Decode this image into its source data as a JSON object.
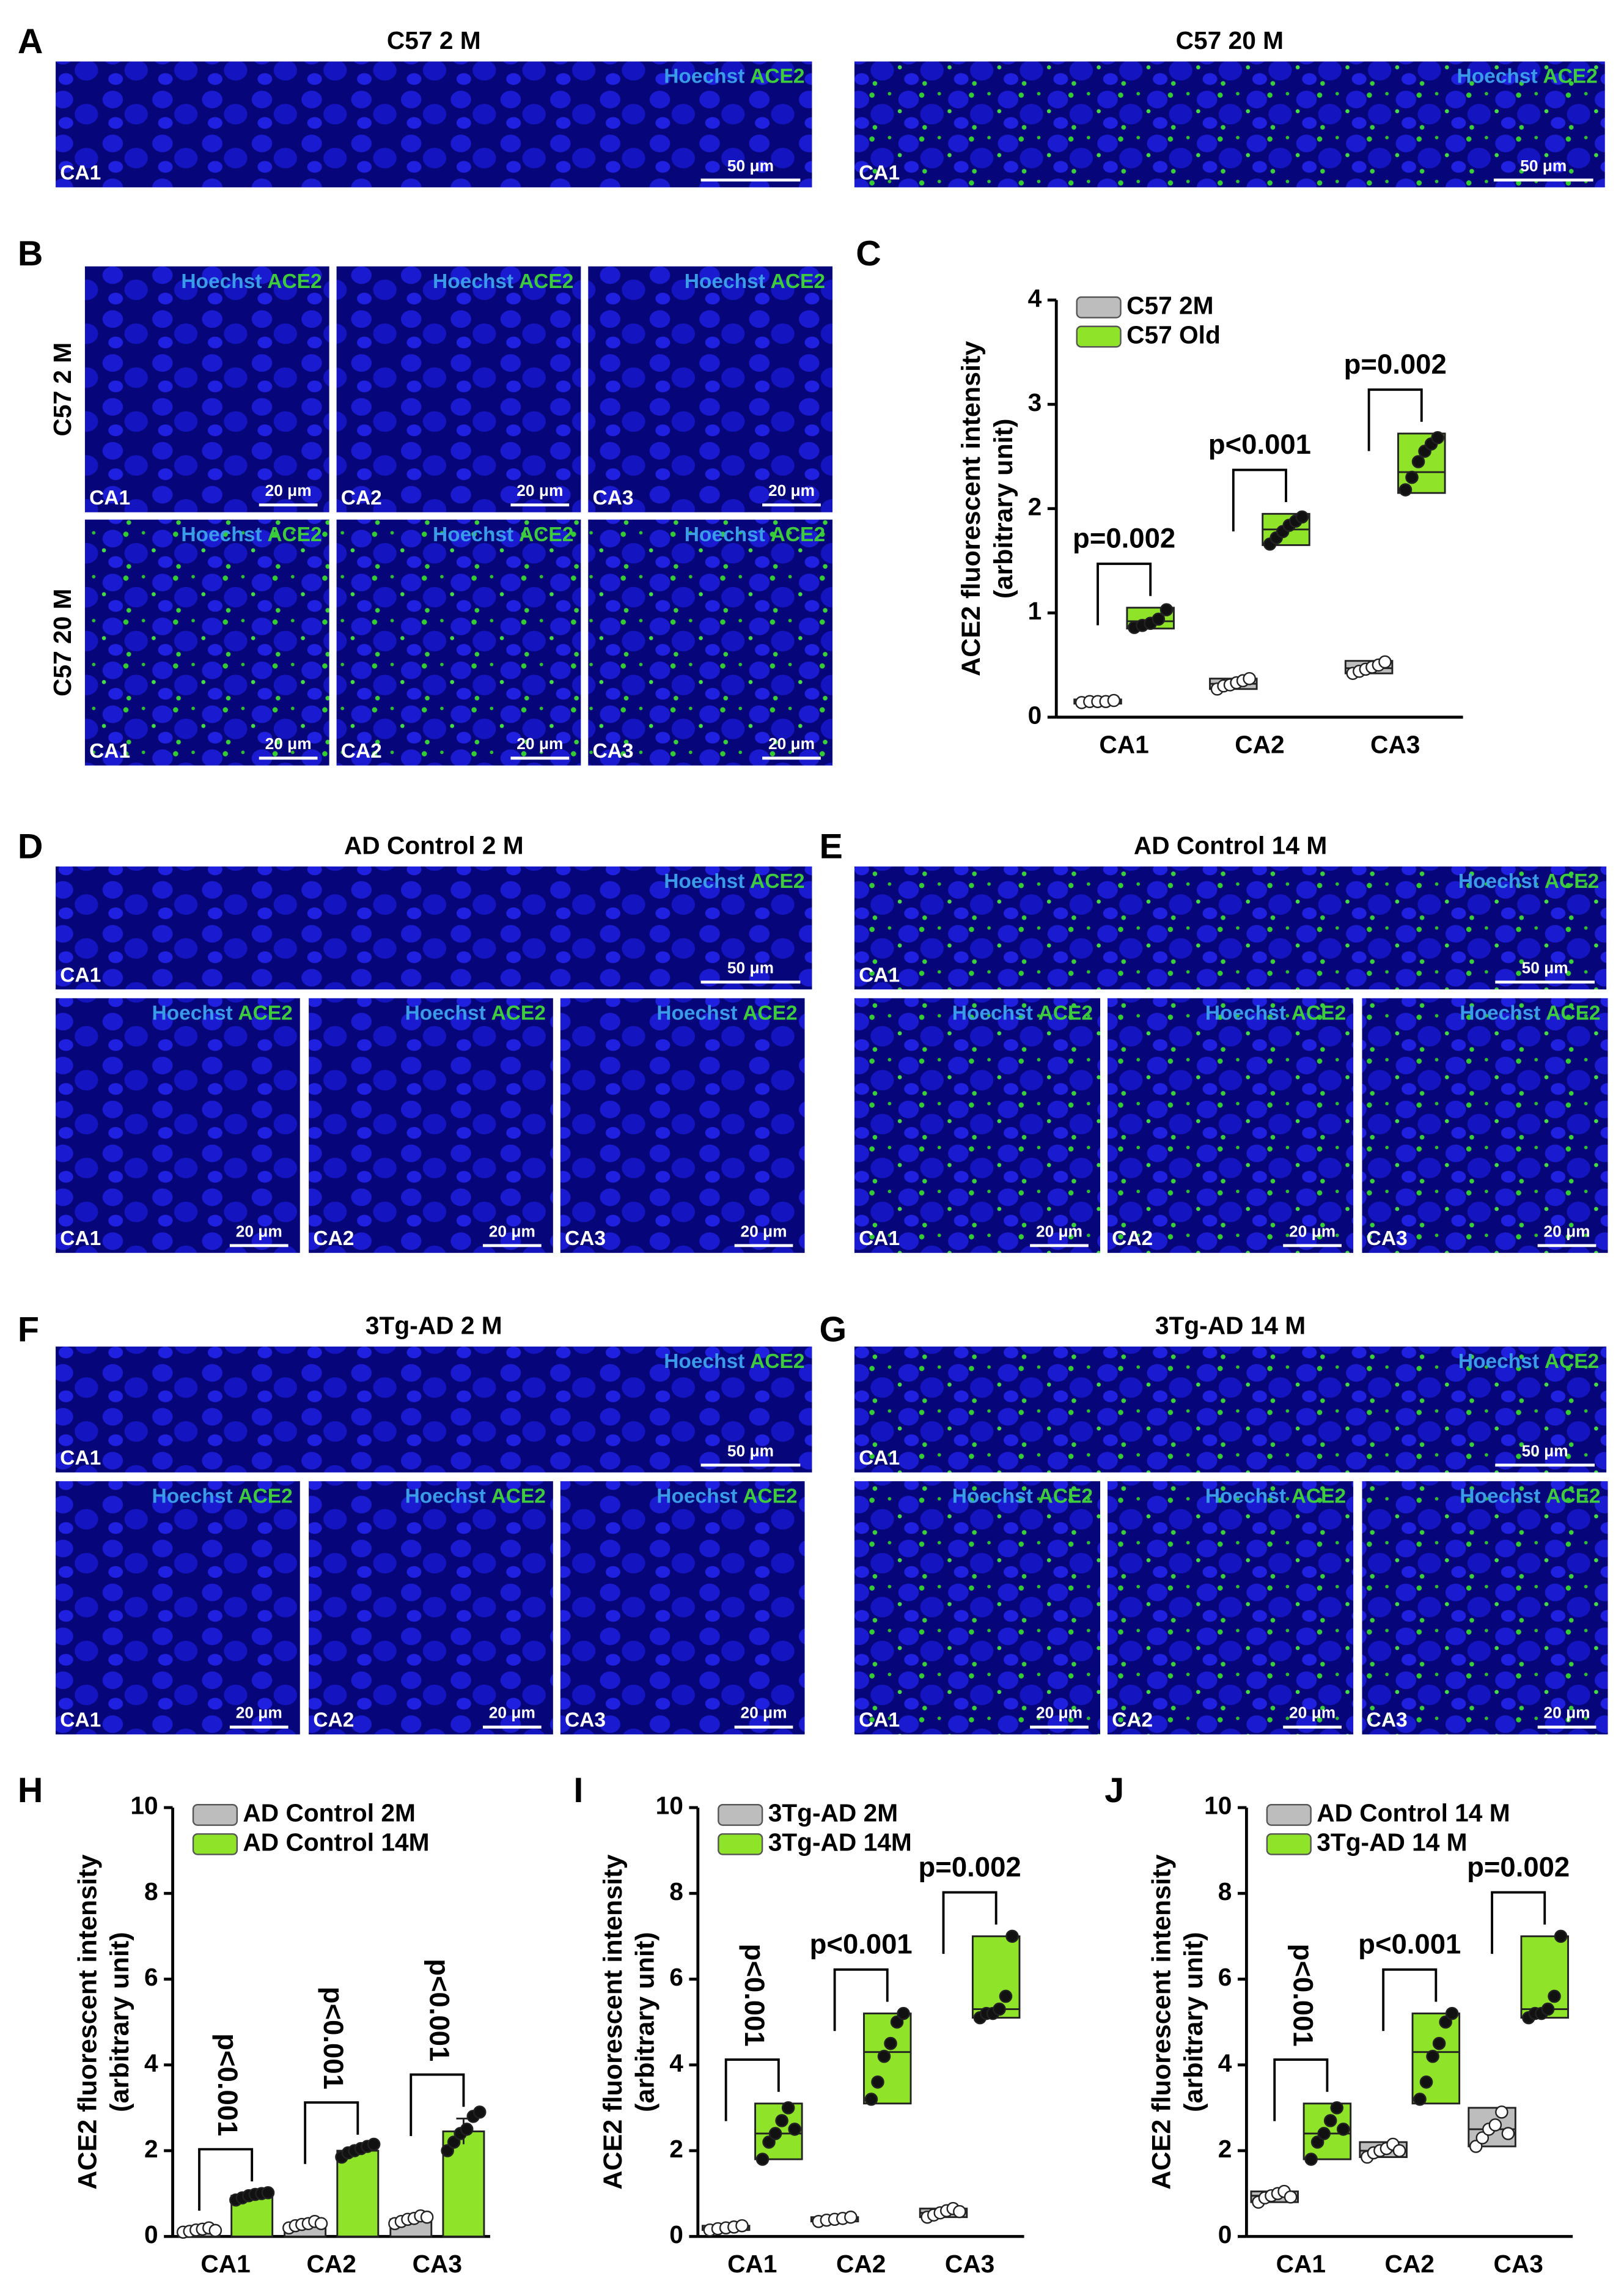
{
  "figure": {
    "letters": [
      "A",
      "B",
      "C",
      "D",
      "E",
      "F",
      "G",
      "H",
      "I",
      "J"
    ],
    "image_groups": [
      {
        "title": "C57 2 M",
        "images": [
          {
            "stain": [
              "Hoechst",
              "ACE2"
            ],
            "region": "CA1",
            "scale": "50 μm"
          }
        ]
      },
      {
        "title": "C57 20 M",
        "images": [
          {
            "stain": [
              "Hoechst",
              "ACE2"
            ],
            "region": "CA1",
            "scale": "50 μm"
          }
        ]
      },
      {
        "row_labels": [
          "C57 2 M",
          "C57 20 M"
        ],
        "images": [
          {
            "stain": [
              "Hoechst",
              "ACE2"
            ],
            "region": "CA1",
            "scale": "20 μm"
          },
          {
            "stain": [
              "Hoechst",
              "ACE2"
            ],
            "region": "CA2",
            "scale": "20 μm"
          },
          {
            "stain": [
              "Hoechst",
              "ACE2"
            ],
            "region": "CA3",
            "scale": "20 μm"
          },
          {
            "stain": [
              "Hoechst",
              "ACE2"
            ],
            "region": "CA1",
            "scale": "20 μm"
          },
          {
            "stain": [
              "Hoechst",
              "ACE2"
            ],
            "region": "CA2",
            "scale": "20 μm"
          },
          {
            "stain": [
              "Hoechst",
              "ACE2"
            ],
            "region": "CA3",
            "scale": "20 μm"
          }
        ]
      },
      {
        "title": "AD Control 2 M",
        "images": [
          {
            "stain": [
              "Hoechst",
              "ACE2"
            ],
            "region": "CA1",
            "scale": "50 μm"
          },
          {
            "stain": [
              "Hoechst",
              "ACE2"
            ],
            "region": "CA1",
            "scale": "20 μm"
          },
          {
            "stain": [
              "Hoechst",
              "ACE2"
            ],
            "region": "CA2",
            "scale": "20 μm"
          },
          {
            "stain": [
              "Hoechst",
              "ACE2"
            ],
            "region": "CA3",
            "scale": "20 μm"
          }
        ]
      },
      {
        "title": "AD Control 14 M",
        "images": [
          {
            "stain": [
              "Hoechst",
              "ACE2"
            ],
            "region": "CA1",
            "scale": "50 μm"
          },
          {
            "stain": [
              "Hoechst",
              "ACE2"
            ],
            "region": "CA1",
            "scale": "20 μm"
          },
          {
            "stain": [
              "Hoechst",
              "ACE2"
            ],
            "region": "CA2",
            "scale": "20 μm"
          },
          {
            "stain": [
              "Hoechst",
              "ACE2"
            ],
            "region": "CA3",
            "scale": "20 μm"
          }
        ]
      },
      {
        "title": "3Tg-AD 2 M",
        "images": [
          {
            "stain": [
              "Hoechst",
              "ACE2"
            ],
            "region": "CA1",
            "scale": "50 μm"
          },
          {
            "stain": [
              "Hoechst",
              "ACE2"
            ],
            "region": "CA1",
            "scale": "20 μm"
          },
          {
            "stain": [
              "Hoechst",
              "ACE2"
            ],
            "region": "CA2",
            "scale": "20 μm"
          },
          {
            "stain": [
              "Hoechst",
              "ACE2"
            ],
            "region": "CA3",
            "scale": "20 μm"
          }
        ]
      },
      {
        "title": "3Tg-AD 14 M",
        "images": [
          {
            "stain": [
              "Hoechst",
              "ACE2"
            ],
            "region": "CA1",
            "scale": "50 μm"
          },
          {
            "stain": [
              "Hoechst",
              "ACE2"
            ],
            "region": "CA1",
            "scale": "20 μm"
          },
          {
            "stain": [
              "Hoechst",
              "ACE2"
            ],
            "region": "CA2",
            "scale": "20 μm"
          },
          {
            "stain": [
              "Hoechst",
              "ACE2"
            ],
            "region": "CA3",
            "scale": "20 μm"
          }
        ]
      }
    ]
  },
  "chart_data": [
    {
      "type": "box",
      "ylabel": [
        "ACE2 fluorescent intensity",
        "(arbitrary unit)"
      ],
      "categories": [
        "CA1",
        "CA2",
        "CA3"
      ],
      "ylim": [
        0,
        4
      ],
      "yticks": [
        0,
        1,
        2,
        3,
        4
      ],
      "series": [
        {
          "name": "C57 2M",
          "color": "#bdbdbd",
          "low": [
            0.13,
            0.27,
            0.42
          ],
          "median": [
            0.15,
            0.32,
            0.47
          ],
          "high": [
            0.17,
            0.37,
            0.54
          ],
          "points": [
            [
              0.14,
              0.15,
              0.15,
              0.15,
              0.16
            ],
            [
              0.27,
              0.3,
              0.31,
              0.33,
              0.35,
              0.37
            ],
            [
              0.42,
              0.44,
              0.46,
              0.48,
              0.5,
              0.53
            ]
          ]
        },
        {
          "name": "C57 Old",
          "color": "#8fe328",
          "low": [
            0.85,
            1.65,
            2.15
          ],
          "median": [
            0.92,
            1.8,
            2.35
          ],
          "high": [
            1.05,
            1.95,
            2.72
          ],
          "points": [
            [
              0.86,
              0.88,
              0.9,
              0.94,
              1.03
            ],
            [
              1.66,
              1.72,
              1.78,
              1.84,
              1.88,
              1.92
            ],
            [
              2.18,
              2.3,
              2.45,
              2.55,
              2.62,
              2.68
            ]
          ]
        }
      ],
      "annotations": [
        {
          "text": "p=0.002",
          "rotated": false
        },
        {
          "text": "p<0.001",
          "rotated": false
        },
        {
          "text": "p=0.002",
          "rotated": false
        }
      ]
    },
    {
      "type": "bar",
      "ylabel": [
        "ACE2 fluorescent intensity",
        "(arbitrary unit)"
      ],
      "categories": [
        "CA1",
        "CA2",
        "CA3"
      ],
      "ylim": [
        0,
        10
      ],
      "yticks": [
        0,
        2,
        4,
        6,
        8,
        10
      ],
      "series": [
        {
          "name": "AD Control 2M",
          "color": "#bdbdbd",
          "values": [
            0.15,
            0.28,
            0.4
          ],
          "errors": [
            0.05,
            0.06,
            0.08
          ],
          "points": [
            [
              0.1,
              0.12,
              0.15,
              0.17,
              0.2,
              0.14
            ],
            [
              0.2,
              0.25,
              0.28,
              0.3,
              0.35,
              0.3
            ],
            [
              0.3,
              0.35,
              0.4,
              0.42,
              0.48,
              0.45
            ]
          ]
        },
        {
          "name": "AD Control 14M",
          "color": "#8fe328",
          "values": [
            0.95,
            2.0,
            2.45
          ],
          "errors": [
            0.06,
            0.1,
            0.3
          ],
          "points": [
            [
              0.85,
              0.9,
              0.95,
              0.98,
              1.0,
              1.02
            ],
            [
              1.85,
              1.95,
              2.0,
              2.05,
              2.1,
              2.15
            ],
            [
              2.0,
              2.2,
              2.4,
              2.5,
              2.8,
              2.9
            ]
          ]
        }
      ],
      "annotations": [
        {
          "text": "p<0.001",
          "rotated": true
        },
        {
          "text": "p<0.001",
          "rotated": true
        },
        {
          "text": "p<0.001",
          "rotated": true
        }
      ]
    },
    {
      "type": "box",
      "ylabel": [
        "ACE2 fluorescent intensity",
        "(arbitrary unit)"
      ],
      "categories": [
        "CA1",
        "CA2",
        "CA3"
      ],
      "ylim": [
        0,
        10
      ],
      "yticks": [
        0,
        2,
        4,
        6,
        8,
        10
      ],
      "series": [
        {
          "name": "3Tg-AD 2M",
          "color": "#bdbdbd",
          "low": [
            0.15,
            0.35,
            0.45
          ],
          "median": [
            0.2,
            0.4,
            0.55
          ],
          "high": [
            0.25,
            0.45,
            0.65
          ],
          "points": [
            [
              0.15,
              0.18,
              0.2,
              0.22,
              0.25
            ],
            [
              0.35,
              0.38,
              0.4,
              0.42,
              0.45
            ],
            [
              0.45,
              0.5,
              0.55,
              0.6,
              0.65,
              0.58
            ]
          ]
        },
        {
          "name": "3Tg-AD 14M",
          "color": "#8fe328",
          "low": [
            1.8,
            3.1,
            5.1
          ],
          "median": [
            2.4,
            4.3,
            5.3
          ],
          "high": [
            3.1,
            5.2,
            7.0
          ],
          "points": [
            [
              1.8,
              2.2,
              2.4,
              2.7,
              3.0,
              2.5
            ],
            [
              3.2,
              3.6,
              4.2,
              4.5,
              5.0,
              5.2
            ],
            [
              5.1,
              5.2,
              5.2,
              5.3,
              5.6,
              7.0
            ]
          ]
        }
      ],
      "annotations": [
        {
          "text": "p<0.001",
          "rotated": true
        },
        {
          "text": "p<0.001",
          "rotated": false
        },
        {
          "text": "p=0.002",
          "rotated": false
        }
      ]
    },
    {
      "type": "box",
      "ylabel": [
        "ACE2 fluorescent intensity",
        "(arbitrary unit)"
      ],
      "categories": [
        "CA1",
        "CA2",
        "CA3"
      ],
      "ylim": [
        0,
        10
      ],
      "yticks": [
        0,
        2,
        4,
        6,
        8,
        10
      ],
      "series": [
        {
          "name": "AD Control 14 M",
          "color": "#bdbdbd",
          "low": [
            0.8,
            1.85,
            2.1
          ],
          "median": [
            0.95,
            2.0,
            2.5
          ],
          "high": [
            1.05,
            2.2,
            3.0
          ],
          "points": [
            [
              0.8,
              0.9,
              0.95,
              1.0,
              1.05,
              0.92
            ],
            [
              1.85,
              1.95,
              2.0,
              2.05,
              2.15,
              2.0
            ],
            [
              2.1,
              2.3,
              2.5,
              2.6,
              2.9,
              2.4
            ]
          ]
        },
        {
          "name": "3Tg-AD 14 M",
          "color": "#8fe328",
          "low": [
            1.8,
            3.1,
            5.1
          ],
          "median": [
            2.4,
            4.3,
            5.3
          ],
          "high": [
            3.1,
            5.2,
            7.0
          ],
          "points": [
            [
              1.8,
              2.2,
              2.4,
              2.7,
              3.0,
              2.5
            ],
            [
              3.2,
              3.6,
              4.2,
              4.5,
              5.0,
              5.2
            ],
            [
              5.1,
              5.2,
              5.2,
              5.3,
              5.6,
              7.0
            ]
          ]
        }
      ],
      "annotations": [
        {
          "text": "p<0.001",
          "rotated": true
        },
        {
          "text": "p<0.001",
          "rotated": false
        },
        {
          "text": "p=0.002",
          "rotated": false
        }
      ]
    }
  ]
}
